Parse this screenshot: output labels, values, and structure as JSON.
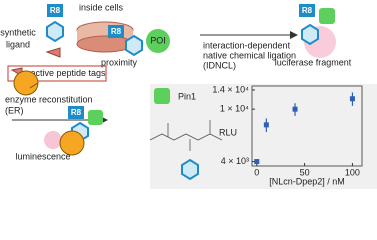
{
  "diagram": {
    "inside_cells": "inside cells",
    "synthetic_ligand": [
      "synthetic",
      "ligand"
    ],
    "reactive_peptide_tags": "reactive peptide tags",
    "poi": "POI",
    "proximity": "proximity",
    "idncl": [
      "interaction-dependent",
      "native chemical ligation",
      "(IDNCL)"
    ],
    "luciferase_fragment": "luciferase fragment",
    "er": [
      "enzyme reconstitution",
      "(ER)"
    ],
    "luminescence": "luminescence",
    "pin1": "Pin1",
    "r8": "R8"
  },
  "chart_data": {
    "type": "scatter",
    "xlabel": "[NLcn-Dpep2] / nM",
    "ylabel": "RLU",
    "x": [
      0,
      10,
      40,
      100
    ],
    "values": [
      4000,
      7600,
      10000,
      12000
    ],
    "errors": [
      150,
      900,
      1100,
      1400
    ],
    "color": "#2f5fb5",
    "xlim": [
      -5,
      110
    ],
    "ylim": [
      3700,
      15000
    ],
    "log_y": true,
    "xticks": [
      0,
      50,
      100
    ],
    "yticks": [
      {
        "value": 4000,
        "label": "4 × 10³"
      },
      {
        "value": 10000,
        "label": "1 × 10⁴"
      },
      {
        "value": 14000,
        "label": "1.4 × 10⁴"
      }
    ]
  }
}
